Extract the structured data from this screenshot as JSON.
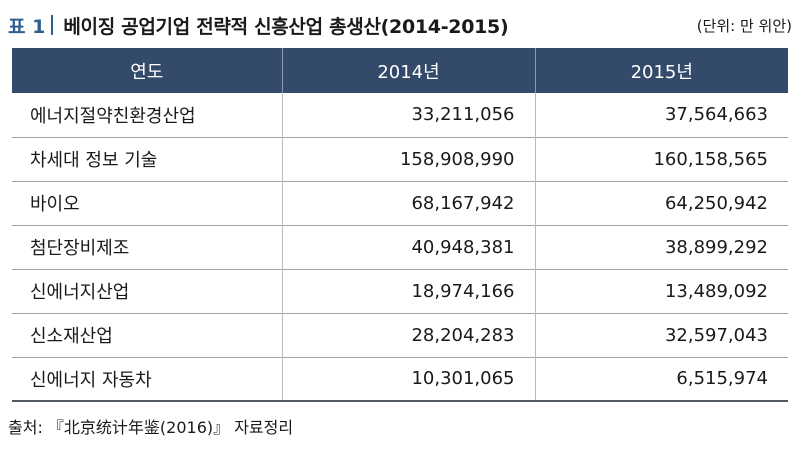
{
  "title": {
    "tag": "표 1",
    "text": "베이징 공업기업 전략적 신흥산업 총생산(2014-2015)",
    "unit": "(단위: 만 위안)"
  },
  "table": {
    "headers": [
      "연도",
      "2014년",
      "2015년"
    ],
    "rows": [
      [
        "에너지절약친환경산업",
        "33,211,056",
        "37,564,663"
      ],
      [
        "차세대 정보 기술",
        "158,908,990",
        "160,158,565"
      ],
      [
        "바이오",
        "68,167,942",
        "64,250,942"
      ],
      [
        "첨단장비제조",
        "40,948,381",
        "38,899,292"
      ],
      [
        "신에너지산업",
        "18,974,166",
        "13,489,092"
      ],
      [
        "신소재산업",
        "28,204,283",
        "32,597,043"
      ],
      [
        "신에너지 자동차",
        "10,301,065",
        "6,515,974"
      ]
    ]
  },
  "source": "출처: 『北京统计年鉴(2016)』 자료정리"
}
